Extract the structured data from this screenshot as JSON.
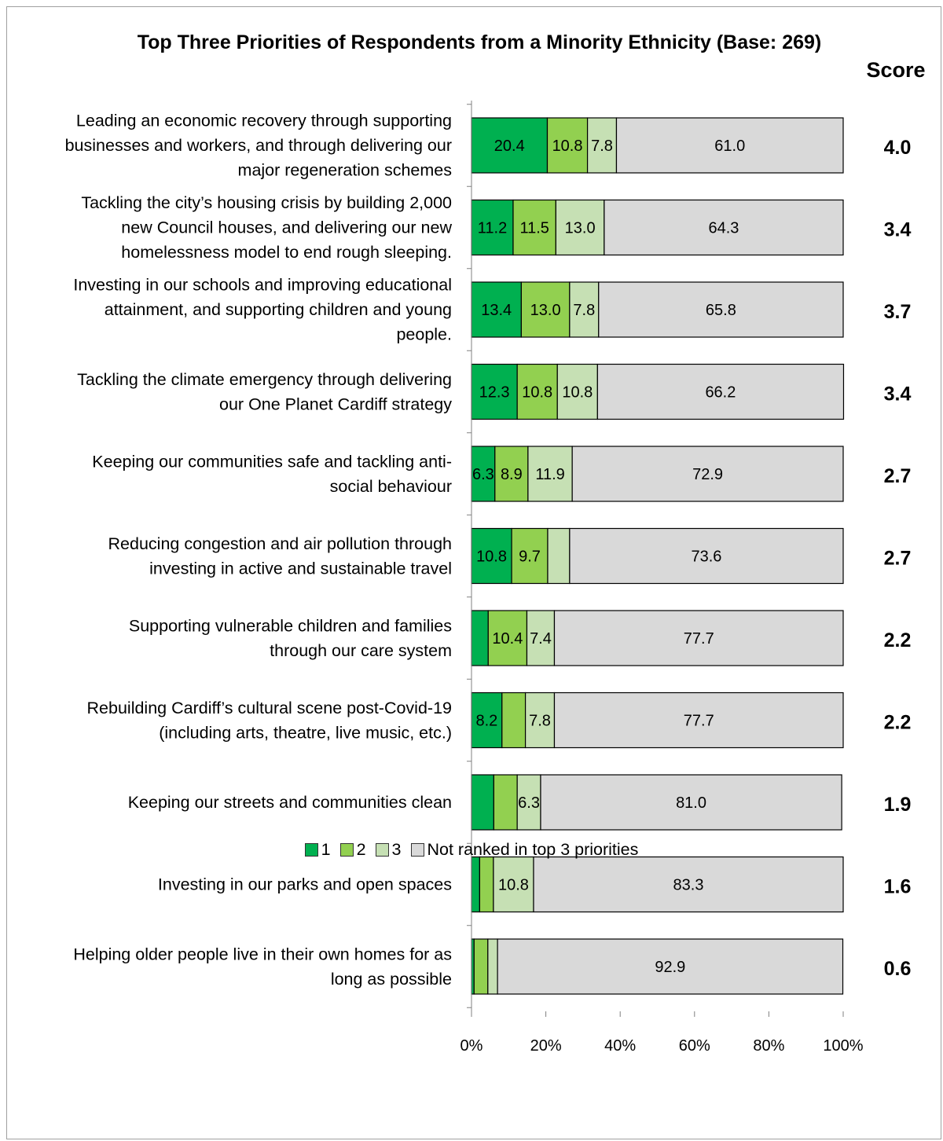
{
  "chart_data": {
    "type": "bar",
    "orientation": "horizontal",
    "stacked": true,
    "title": "Top Three Priorities of Respondents from a Minority Ethnicity (Base: 269)",
    "score_header": "Score",
    "categories": [
      "Leading an economic recovery through supporting businesses and workers, and through delivering our major regeneration schemes",
      "Tackling the city’s housing crisis by building 2,000 new Council houses, and delivering our new homelessness model to end rough sleeping.",
      "Investing in our schools and improving educational attainment, and supporting children and young people.",
      "Tackling the climate emergency through delivering our One Planet Cardiff strategy",
      "Keeping our communities safe and tackling anti-social behaviour",
      "Reducing congestion and air pollution through investing in active and sustainable travel",
      "Supporting vulnerable children and families through our care system",
      "Rebuilding Cardiff’s cultural scene post-Covid-19 (including arts, theatre, live music, etc.)",
      "Keeping our streets and communities clean",
      "Investing in our parks and open spaces",
      "Helping older people live in their own homes for as long as possible"
    ],
    "category_lines": [
      [
        "Leading an economic recovery through supporting",
        "businesses and workers, and through delivering our",
        "major regeneration schemes"
      ],
      [
        "Tackling the city’s housing crisis by building 2,000",
        "new Council houses, and delivering our new",
        "homelessness model to end rough sleeping."
      ],
      [
        "Investing in our schools and improving educational",
        "attainment, and supporting children and young",
        "people."
      ],
      [
        "Tackling the climate emergency through delivering",
        "our One Planet Cardiff strategy"
      ],
      [
        "Keeping our communities safe and tackling anti-",
        "social behaviour"
      ],
      [
        "Reducing congestion and air pollution through",
        "investing in active and sustainable travel"
      ],
      [
        "Supporting vulnerable children and families",
        "through our care system"
      ],
      [
        "Rebuilding Cardiff’s cultural scene post-Covid-19",
        "(including arts, theatre, live music, etc.)"
      ],
      [
        "Keeping our streets and communities clean"
      ],
      [
        "Investing in our parks and open spaces"
      ],
      [
        "Helping older people live in their own homes for as",
        "long as possible"
      ]
    ],
    "series": [
      {
        "name": "1",
        "color": "#00b050",
        "values": [
          20.4,
          11.2,
          13.4,
          12.3,
          6.3,
          10.8,
          4.5,
          8.2,
          6.0,
          2.2,
          0.7
        ],
        "labels": [
          "20.4",
          "11.2",
          "13.4",
          "12.3",
          "6.3",
          "10.8",
          "",
          "8.2",
          "",
          "",
          ""
        ]
      },
      {
        "name": "2",
        "color": "#92d050",
        "values": [
          10.8,
          11.5,
          13.0,
          10.8,
          8.9,
          9.7,
          10.4,
          6.3,
          6.3,
          3.7,
          3.7
        ],
        "labels": [
          "10.8",
          "11.5",
          "13.0",
          "10.8",
          "8.9",
          "9.7",
          "10.4",
          "",
          "",
          "",
          ""
        ]
      },
      {
        "name": "3",
        "color": "#c6e0b4",
        "values": [
          7.8,
          13.0,
          7.8,
          10.8,
          11.9,
          5.9,
          7.4,
          7.8,
          6.3,
          10.8,
          2.6
        ],
        "labels": [
          "7.8",
          "13.0",
          "7.8",
          "10.8",
          "11.9",
          "",
          "7.4",
          "7.8",
          "6.3",
          "10.8",
          ""
        ]
      },
      {
        "name": "Not ranked in top 3 priorities",
        "color": "#d9d9d9",
        "values": [
          61.0,
          64.3,
          65.8,
          66.2,
          72.9,
          73.6,
          77.7,
          77.7,
          81.0,
          83.3,
          92.9
        ],
        "labels": [
          "61.0",
          "64.3",
          "65.8",
          "66.2",
          "72.9",
          "73.6",
          "77.7",
          "77.7",
          "81.0",
          "83.3",
          "92.9"
        ]
      }
    ],
    "scores": [
      "4.0",
      "3.4",
      "3.7",
      "3.4",
      "2.7",
      "2.7",
      "2.2",
      "2.2",
      "1.9",
      "1.6",
      "0.6"
    ],
    "xlim": [
      0,
      100
    ],
    "xticks": [
      "0%",
      "20%",
      "40%",
      "60%",
      "80%",
      "100%"
    ],
    "legend_position": "bottom",
    "grid": false
  }
}
